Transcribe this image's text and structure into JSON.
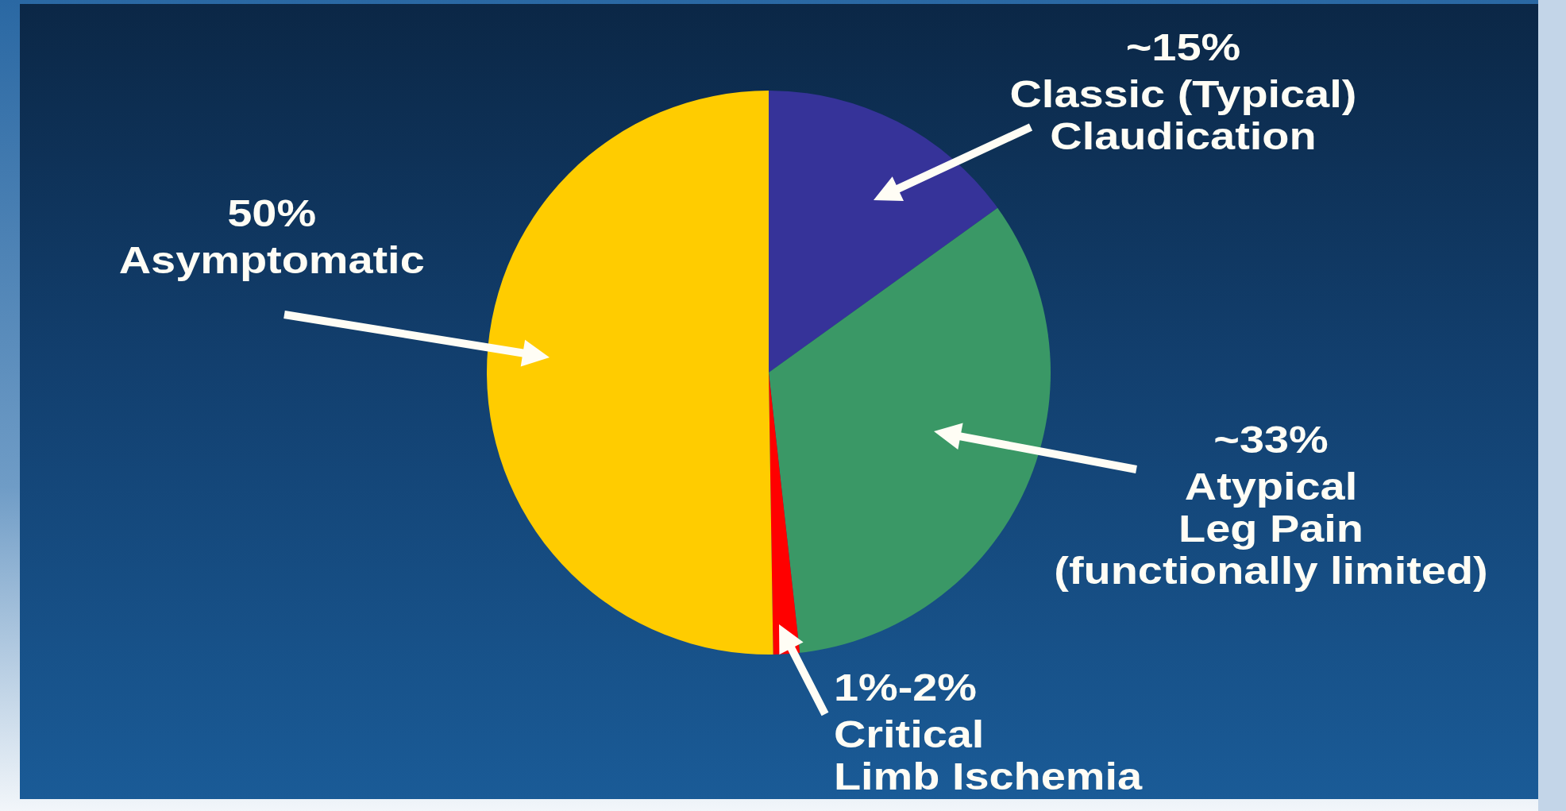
{
  "chart_data": {
    "type": "pie",
    "categories": [
      "Classic (Typical)\nClaudication",
      "Atypical\nLeg Pain\n(functionally limited)",
      "Critical\nLimb Ischemia",
      "Asymptomatic"
    ],
    "values": [
      15,
      33,
      1.5,
      50
    ],
    "colors": [
      "#363399",
      "#3a9866",
      "#ff0000",
      "#ffcc00"
    ],
    "value_labels": [
      "~15%",
      "~33%",
      "1%-2%",
      "50%"
    ]
  }
}
